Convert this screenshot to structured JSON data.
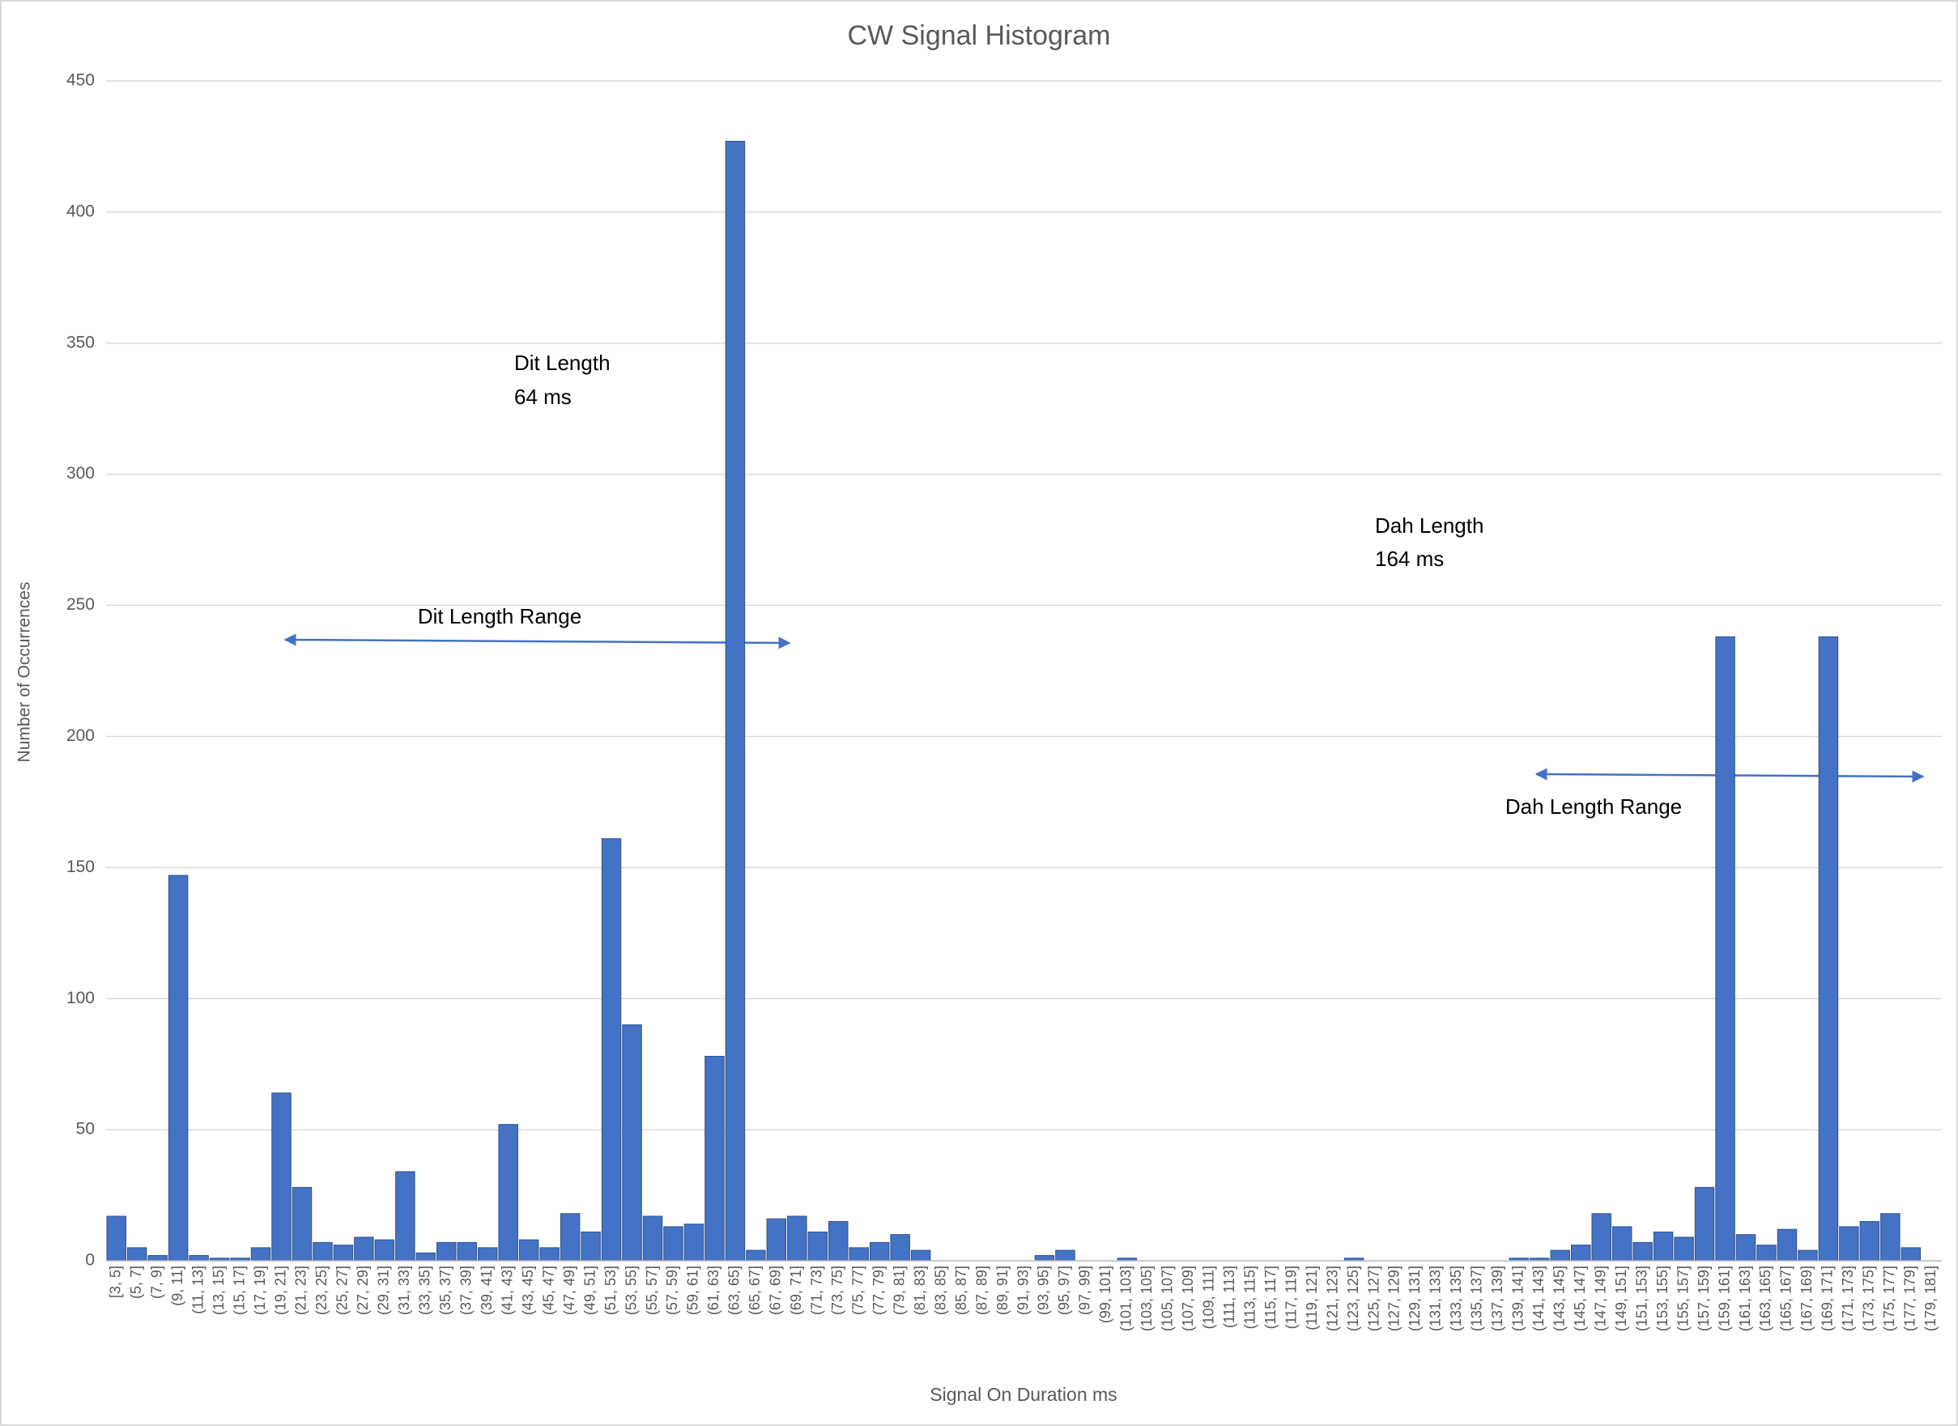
{
  "chart_data": {
    "type": "bar",
    "title": "CW Signal Histogram",
    "x_label": "Signal On Duration ms",
    "y_label": "Number of Occurrences",
    "categories": [
      "[3, 5]",
      "(5, 7]",
      "(7, 9]",
      "(9, 11]",
      "(11, 13]",
      "(13, 15]",
      "(15, 17]",
      "(17, 19]",
      "(19, 21]",
      "(21, 23]",
      "(23, 25]",
      "(25, 27]",
      "(27, 29]",
      "(29, 31]",
      "(31, 33]",
      "(33, 35]",
      "(35, 37]",
      "(37, 39]",
      "(39, 41]",
      "(41, 43]",
      "(43, 45]",
      "(45, 47]",
      "(47, 49]",
      "(49, 51]",
      "(51, 53]",
      "(53, 55]",
      "(55, 57]",
      "(57, 59]",
      "(59, 61]",
      "(61, 63]",
      "(63, 65]",
      "(65, 67]",
      "(67, 69]",
      "(69, 71]",
      "(71, 73]",
      "(73, 75]",
      "(75, 77]",
      "(77, 79]",
      "(79, 81]",
      "(81, 83]",
      "(83, 85]",
      "(85, 87]",
      "(87, 89]",
      "(89, 91]",
      "(91, 93]",
      "(93, 95]",
      "(95, 97]",
      "(97, 99]",
      "(99, 101]",
      "(101, 103]",
      "(103, 105]",
      "(105, 107]",
      "(107, 109]",
      "(109, 111]",
      "(111, 113]",
      "(113, 115]",
      "(115, 117]",
      "(117, 119]",
      "(119, 121]",
      "(121, 123]",
      "(123, 125]",
      "(125, 127]",
      "(127, 129]",
      "(129, 131]",
      "(131, 133]",
      "(133, 135]",
      "(135, 137]",
      "(137, 139]",
      "(139, 141]",
      "(141, 143]",
      "(143, 145]",
      "(145, 147]",
      "(147, 149]",
      "(149, 151]",
      "(151, 153]",
      "(153, 155]",
      "(155, 157]",
      "(157, 159]",
      "(159, 161]",
      "(161, 163]",
      "(163, 165]",
      "(165, 167]",
      "(167, 169]",
      "(169, 171]",
      "(171, 173]",
      "(173, 175]",
      "(175, 177]",
      "(177, 179]",
      "(179, 181]"
    ],
    "values": [
      17,
      5,
      2,
      147,
      2,
      1,
      1,
      5,
      64,
      28,
      7,
      6,
      9,
      8,
      34,
      3,
      7,
      7,
      5,
      52,
      8,
      5,
      18,
      11,
      161,
      90,
      17,
      13,
      14,
      78,
      427,
      4,
      16,
      17,
      11,
      15,
      5,
      7,
      10,
      4,
      0,
      0,
      0,
      0,
      0,
      2,
      4,
      0,
      0,
      1,
      0,
      0,
      0,
      0,
      0,
      0,
      0,
      0,
      0,
      0,
      1,
      0,
      0,
      0,
      0,
      0,
      0,
      0,
      1,
      1,
      4,
      6,
      18,
      13,
      7,
      11,
      9,
      28,
      238,
      10,
      6,
      12,
      4,
      238,
      13,
      15,
      18,
      5,
      0
    ],
    "color": "#4472c4",
    "ylim": [
      0,
      450
    ],
    "yticks": [
      0,
      50,
      100,
      150,
      200,
      250,
      300,
      350,
      400,
      450
    ],
    "grid": true,
    "annotations": [
      "Dit Length",
      "64 ms",
      "Dit Length Range",
      "Dah Length",
      "164 ms",
      "Dah Length Range"
    ]
  }
}
